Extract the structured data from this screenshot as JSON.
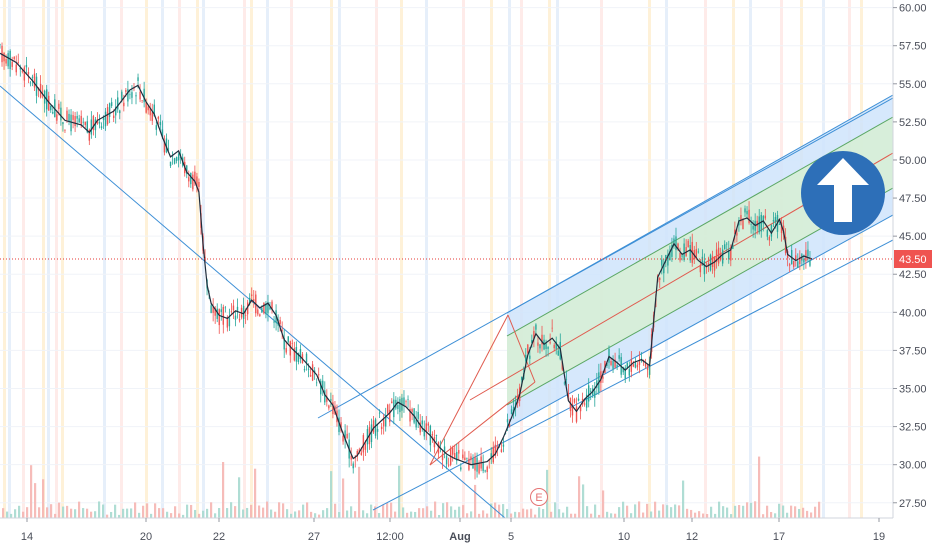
{
  "chart_data": {
    "type": "candlestick",
    "x_ticks": [
      "14",
      "20",
      "22",
      "27",
      "12:00",
      "Aug",
      "5",
      "10",
      "12",
      "17",
      "19"
    ],
    "y_ticks": [
      "60.00",
      "57.50",
      "55.00",
      "52.50",
      "50.00",
      "47.50",
      "45.00",
      "42.50",
      "40.00",
      "37.50",
      "35.00",
      "32.50",
      "30.00",
      "27.50"
    ],
    "ylim": [
      26.5,
      60.5
    ],
    "last_price": {
      "value": 43.5,
      "label": "43.50"
    },
    "earnings_marker": "E",
    "price_path": [
      [
        0,
        57.0
      ],
      [
        2,
        56.4
      ],
      [
        4,
        55.2
      ],
      [
        6,
        53.8
      ],
      [
        8,
        52.6
      ],
      [
        10,
        52.3
      ],
      [
        11,
        51.8
      ],
      [
        12,
        52.6
      ],
      [
        14,
        53.2
      ],
      [
        16,
        54.6
      ],
      [
        17,
        54.9
      ],
      [
        18,
        53.8
      ],
      [
        19,
        53.0
      ],
      [
        20,
        51.5
      ],
      [
        21,
        50.2
      ],
      [
        22,
        50.6
      ],
      [
        23,
        49.2
      ],
      [
        24,
        48.6
      ],
      [
        24.5,
        47.9
      ],
      [
        25,
        44.5
      ],
      [
        25.5,
        41.8
      ],
      [
        26,
        40.6
      ],
      [
        27,
        39.8
      ],
      [
        28,
        39.6
      ],
      [
        29,
        40.1
      ],
      [
        30,
        39.9
      ],
      [
        31,
        40.8
      ],
      [
        32,
        40.3
      ],
      [
        33,
        40.6
      ],
      [
        34,
        39.8
      ],
      [
        35,
        38.2
      ],
      [
        36,
        37.6
      ],
      [
        37,
        37.1
      ],
      [
        38,
        36.5
      ],
      [
        39,
        35.9
      ],
      [
        40,
        34.6
      ],
      [
        41,
        33.9
      ],
      [
        42,
        32.4
      ],
      [
        43,
        31.0
      ],
      [
        43.5,
        30.4
      ],
      [
        44,
        30.6
      ],
      [
        46,
        32.4
      ],
      [
        47,
        32.9
      ],
      [
        48,
        33.4
      ],
      [
        49,
        34.1
      ],
      [
        50,
        33.8
      ],
      [
        51,
        33.2
      ],
      [
        52,
        32.4
      ],
      [
        53,
        31.9
      ],
      [
        54,
        31.2
      ],
      [
        55,
        30.7
      ],
      [
        56,
        30.4
      ],
      [
        57,
        30.2
      ],
      [
        58,
        30.0
      ],
      [
        59,
        30.1
      ],
      [
        60,
        30.2
      ],
      [
        61,
        30.7
      ],
      [
        62,
        31.8
      ],
      [
        63,
        33.1
      ],
      [
        64,
        34.6
      ],
      [
        65,
        37.2
      ],
      [
        66,
        38.6
      ],
      [
        67,
        37.9
      ],
      [
        68,
        38.3
      ],
      [
        69,
        37.6
      ],
      [
        70,
        34.2
      ],
      [
        71,
        33.5
      ],
      [
        72,
        34.3
      ],
      [
        73,
        34.8
      ],
      [
        74,
        35.6
      ],
      [
        75,
        37.1
      ],
      [
        76,
        36.7
      ],
      [
        77,
        36.2
      ],
      [
        78,
        36.7
      ],
      [
        79,
        36.9
      ],
      [
        80,
        36.5
      ],
      [
        81,
        42.3
      ],
      [
        82,
        43.4
      ],
      [
        83,
        44.5
      ],
      [
        84,
        43.8
      ],
      [
        85,
        44.1
      ],
      [
        86,
        43.4
      ],
      [
        87,
        43.0
      ],
      [
        88,
        43.3
      ],
      [
        89,
        43.8
      ],
      [
        90,
        44.1
      ],
      [
        91,
        46.0
      ],
      [
        92,
        46.2
      ],
      [
        93,
        45.7
      ],
      [
        94,
        46.0
      ],
      [
        95,
        45.2
      ],
      [
        96,
        46.1
      ],
      [
        96.5,
        45.3
      ],
      [
        97,
        43.8
      ],
      [
        97.5,
        43.6
      ],
      [
        98,
        43.4
      ],
      [
        99,
        43.7
      ],
      [
        100,
        43.5
      ]
    ]
  }
}
